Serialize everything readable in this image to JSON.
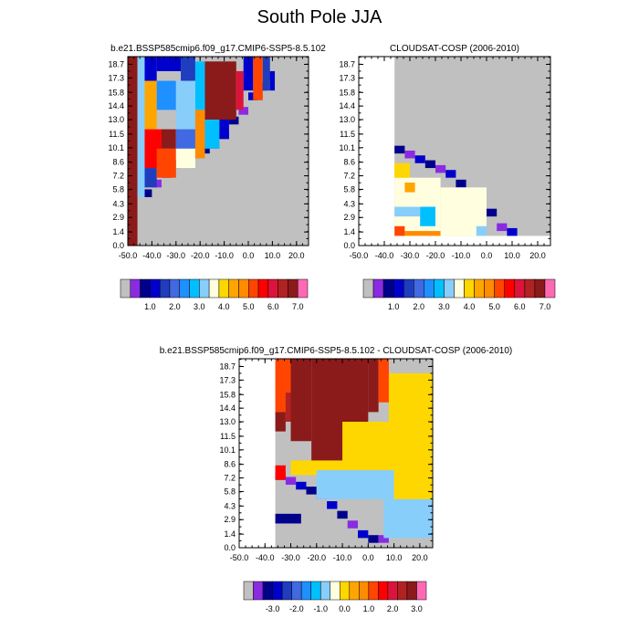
{
  "page": {
    "title": "South Pole JJA"
  },
  "colorbars": [
    {
      "colors": [
        "#c0c0c0",
        "#8a2be2",
        "#00008b",
        "#0000cd",
        "#1f3dbd",
        "#4169e1",
        "#1e90ff",
        "#00bfff",
        "#87cefa",
        "#ffffe0",
        "#ffd700",
        "#ffa500",
        "#ff8c00",
        "#ff4500",
        "#ff0000",
        "#dc143c",
        "#b22222",
        "#8b1a1a",
        "#ff69b4"
      ],
      "tick_labels": [
        "1.0",
        "2.0",
        "3.0",
        "4.0",
        "5.0",
        "6.0",
        "7.0"
      ]
    },
    {
      "colors": [
        "#c0c0c0",
        "#8a2be2",
        "#00008b",
        "#0000cd",
        "#1f3dbd",
        "#4169e1",
        "#1e90ff",
        "#00bfff",
        "#87cefa",
        "#ffffe0",
        "#ffd700",
        "#ffa500",
        "#ff8c00",
        "#ff4500",
        "#ff0000",
        "#dc143c",
        "#b22222",
        "#8b1a1a",
        "#ff69b4"
      ],
      "tick_labels": [
        "1.0",
        "2.0",
        "3.0",
        "4.0",
        "5.0",
        "6.0",
        "7.0"
      ]
    },
    {
      "colors": [
        "#c0c0c0",
        "#8a2be2",
        "#00008b",
        "#0000cd",
        "#1f3dbd",
        "#4169e1",
        "#1e90ff",
        "#00bfff",
        "#87cefa",
        "#ffffe0",
        "#ffd700",
        "#ffa500",
        "#ff8c00",
        "#ff4500",
        "#ff0000",
        "#dc143c",
        "#b22222",
        "#8b1a1a",
        "#ff69b4"
      ],
      "tick_labels": [
        "-3.0",
        "-2.0",
        "-1.0",
        "0.0",
        "1.0",
        "2.0",
        "3.0"
      ]
    }
  ],
  "chart_data": [
    {
      "type": "heatmap",
      "title": "b.e21.BSSP585cmip6.f09_g17.CMIP6-SSP5-8.5.102",
      "xlabel": "",
      "ylabel": "",
      "x_ticks": [
        "-50.0",
        "-40.0",
        "-30.0",
        "-20.0",
        "-10.0",
        "0.0",
        "10.0",
        "20.0"
      ],
      "y_ticks": [
        "0.0",
        "1.4",
        "2.9",
        "4.3",
        "5.8",
        "7.2",
        "8.6",
        "10.1",
        "11.5",
        "13.0",
        "14.4",
        "15.8",
        "17.3",
        "18.7"
      ],
      "xlim": [
        -50,
        25
      ],
      "ylim": [
        0,
        19.5
      ],
      "missing_color": "#c0c0c0",
      "blocks": [
        {
          "x": [
            -50,
            -46
          ],
          "y": [
            0,
            19.5
          ],
          "value": 7.5
        },
        {
          "x": [
            -46,
            -43
          ],
          "y": [
            5,
            19.5
          ],
          "value": 3.5
        },
        {
          "x": [
            -43,
            -38
          ],
          "y": [
            17,
            19.5
          ],
          "value": 1.2
        },
        {
          "x": [
            -38,
            -28
          ],
          "y": [
            18,
            19.5
          ],
          "value": 1.0
        },
        {
          "x": [
            -28,
            -22
          ],
          "y": [
            17,
            19.5
          ],
          "value": 1.5
        },
        {
          "x": [
            -22,
            -18
          ],
          "y": [
            14,
            19
          ],
          "value": 2.8
        },
        {
          "x": [
            -18,
            -5
          ],
          "y": [
            13,
            19
          ],
          "value": 7.5
        },
        {
          "x": [
            -5,
            -2
          ],
          "y": [
            14,
            18
          ],
          "value": 6.5
        },
        {
          "x": [
            -2,
            2
          ],
          "y": [
            16,
            19.5
          ],
          "value": 1.2
        },
        {
          "x": [
            2,
            6
          ],
          "y": [
            15,
            19.5
          ],
          "value": 5.5
        },
        {
          "x": [
            6,
            9
          ],
          "y": [
            16,
            19.5
          ],
          "value": 1.6
        },
        {
          "x": [
            9,
            11
          ],
          "y": [
            16,
            18
          ],
          "value": 1.0
        },
        {
          "x": [
            -43,
            -38
          ],
          "y": [
            12,
            17
          ],
          "value": 4.5
        },
        {
          "x": [
            -38,
            -30
          ],
          "y": [
            14,
            17
          ],
          "value": 2.5
        },
        {
          "x": [
            -30,
            -22
          ],
          "y": [
            12,
            17
          ],
          "value": 3.2
        },
        {
          "x": [
            -43,
            -36
          ],
          "y": [
            8,
            12
          ],
          "value": 6.2
        },
        {
          "x": [
            -36,
            -30
          ],
          "y": [
            10,
            12
          ],
          "value": 7.5
        },
        {
          "x": [
            -30,
            -22
          ],
          "y": [
            10,
            12
          ],
          "value": 2.0
        },
        {
          "x": [
            -22,
            -18
          ],
          "y": [
            9,
            14
          ],
          "value": 5.0
        },
        {
          "x": [
            -43,
            -38
          ],
          "y": [
            6,
            8
          ],
          "value": 1.5
        },
        {
          "x": [
            -38,
            -30
          ],
          "y": [
            7,
            10
          ],
          "value": 5.5
        },
        {
          "x": [
            -30,
            -22
          ],
          "y": [
            8,
            10
          ],
          "value": 3.8
        },
        {
          "x": [
            -18,
            -12
          ],
          "y": [
            10,
            13
          ],
          "value": 3.0
        },
        {
          "x": [
            -12,
            -8
          ],
          "y": [
            11,
            13
          ],
          "value": 1.2
        }
      ],
      "staircase_edge": [
        [
          -43,
          5
        ],
        [
          -40,
          6
        ],
        [
          -36,
          7
        ],
        [
          -32,
          8
        ],
        [
          -28,
          8.5
        ],
        [
          -24,
          9
        ],
        [
          -20,
          9.5
        ],
        [
          -16,
          10
        ],
        [
          -12,
          11
        ],
        [
          -8,
          12.5
        ],
        [
          -4,
          13.5
        ],
        [
          0,
          15
        ],
        [
          4,
          16
        ],
        [
          8,
          17
        ],
        [
          11,
          18
        ]
      ]
    },
    {
      "type": "heatmap",
      "title": "CLOUDSAT-COSP (2006-2010)",
      "xlabel": "",
      "ylabel": "",
      "x_ticks": [
        "-50.0",
        "-40.0",
        "-30.0",
        "-20.0",
        "-10.0",
        "0.0",
        "10.0",
        "20.0"
      ],
      "y_ticks": [
        "0.0",
        "1.4",
        "2.9",
        "4.3",
        "5.8",
        "7.2",
        "8.6",
        "10.1",
        "11.5",
        "13.0",
        "14.4",
        "15.8",
        "17.3",
        "18.7"
      ],
      "xlim": [
        -50,
        25
      ],
      "ylim": [
        0,
        19.5
      ],
      "missing_color": "#c0c0c0",
      "blocks": [
        {
          "x": [
            -36,
            -18
          ],
          "y": [
            1,
            7
          ],
          "value": 4.0
        },
        {
          "x": [
            -36,
            -32
          ],
          "y": [
            1,
            2
          ],
          "value": 5.5
        },
        {
          "x": [
            -32,
            -18
          ],
          "y": [
            1,
            1.5
          ],
          "value": 5.0
        },
        {
          "x": [
            -36,
            -26
          ],
          "y": [
            3,
            4
          ],
          "value": 3.2
        },
        {
          "x": [
            -26,
            -20
          ],
          "y": [
            2,
            4
          ],
          "value": 3.0
        },
        {
          "x": [
            -32,
            -28
          ],
          "y": [
            5.5,
            6.5
          ],
          "value": 4.5
        },
        {
          "x": [
            -36,
            -30
          ],
          "y": [
            7,
            8.5
          ],
          "value": 4.3
        },
        {
          "x": [
            -18,
            0
          ],
          "y": [
            1,
            6
          ],
          "value": 4.0
        },
        {
          "x": [
            -4,
            0
          ],
          "y": [
            1,
            2
          ],
          "value": 3.2
        }
      ],
      "staircase_edge": [
        [
          -36,
          9.5
        ],
        [
          -32,
          9
        ],
        [
          -28,
          8.5
        ],
        [
          -24,
          8
        ],
        [
          -20,
          7.5
        ],
        [
          -16,
          7
        ],
        [
          -12,
          6
        ],
        [
          -8,
          5
        ],
        [
          -4,
          4
        ],
        [
          0,
          3
        ],
        [
          4,
          1.5
        ],
        [
          8,
          1
        ],
        [
          12,
          0.5
        ]
      ]
    },
    {
      "type": "heatmap",
      "title": "b.e21.BSSP585cmip6.f09_g17.CMIP6-SSP5-8.5.102 - CLOUDSAT-COSP (2006-2010)",
      "xlabel": "",
      "ylabel": "",
      "x_ticks": [
        "-50.0",
        "-40.0",
        "-30.0",
        "-20.0",
        "-10.0",
        "0.0",
        "10.0",
        "20.0"
      ],
      "y_ticks": [
        "0.0",
        "1.4",
        "2.9",
        "4.3",
        "5.8",
        "7.2",
        "8.6",
        "10.1",
        "11.5",
        "13.0",
        "14.4",
        "15.8",
        "17.3",
        "18.7"
      ],
      "xlim": [
        -50,
        25
      ],
      "ylim": [
        0,
        19.5
      ],
      "missing_color": "#c0c0c0",
      "blocks": [
        {
          "x": [
            -36,
            -30
          ],
          "y": [
            14,
            19.5
          ],
          "value": 1.5
        },
        {
          "x": [
            -30,
            -26
          ],
          "y": [
            16,
            19.5
          ],
          "value": 1.2
        },
        {
          "x": [
            -36,
            -32
          ],
          "y": [
            12,
            14
          ],
          "value": 3.2
        },
        {
          "x": [
            -32,
            -28
          ],
          "y": [
            13,
            16
          ],
          "value": 3.0
        },
        {
          "x": [
            -30,
            -22
          ],
          "y": [
            11,
            19.5
          ],
          "value": 3.5
        },
        {
          "x": [
            -22,
            0
          ],
          "y": [
            9,
            19.5
          ],
          "value": 3.5
        },
        {
          "x": [
            0,
            4
          ],
          "y": [
            14,
            19.5
          ],
          "value": 3.2
        },
        {
          "x": [
            4,
            8
          ],
          "y": [
            15,
            19.5
          ],
          "value": 1.5
        },
        {
          "x": [
            8,
            25
          ],
          "y": [
            5,
            18
          ],
          "value": 0.2
        },
        {
          "x": [
            -10,
            8
          ],
          "y": [
            5,
            13
          ],
          "value": 0.2
        },
        {
          "x": [
            -30,
            -10
          ],
          "y": [
            7.5,
            9
          ],
          "value": 0.2
        },
        {
          "x": [
            -20,
            10
          ],
          "y": [
            5,
            8
          ],
          "value": -0.5
        },
        {
          "x": [
            6,
            25
          ],
          "y": [
            1,
            5
          ],
          "value": -0.5
        },
        {
          "x": [
            -36,
            -26
          ],
          "y": [
            2.5,
            3.5
          ],
          "value": -3.5
        },
        {
          "x": [
            -36,
            -32
          ],
          "y": [
            7,
            8.5
          ],
          "value": 2.2
        }
      ],
      "staircase_edge": [
        [
          -36,
          7
        ],
        [
          -32,
          6.5
        ],
        [
          -28,
          6
        ],
        [
          -24,
          5.5
        ],
        [
          -20,
          5
        ],
        [
          -16,
          4
        ],
        [
          -12,
          3
        ],
        [
          -8,
          2
        ],
        [
          -4,
          1
        ],
        [
          0,
          0.5
        ],
        [
          4,
          0.5
        ],
        [
          8,
          0.5
        ]
      ]
    }
  ]
}
